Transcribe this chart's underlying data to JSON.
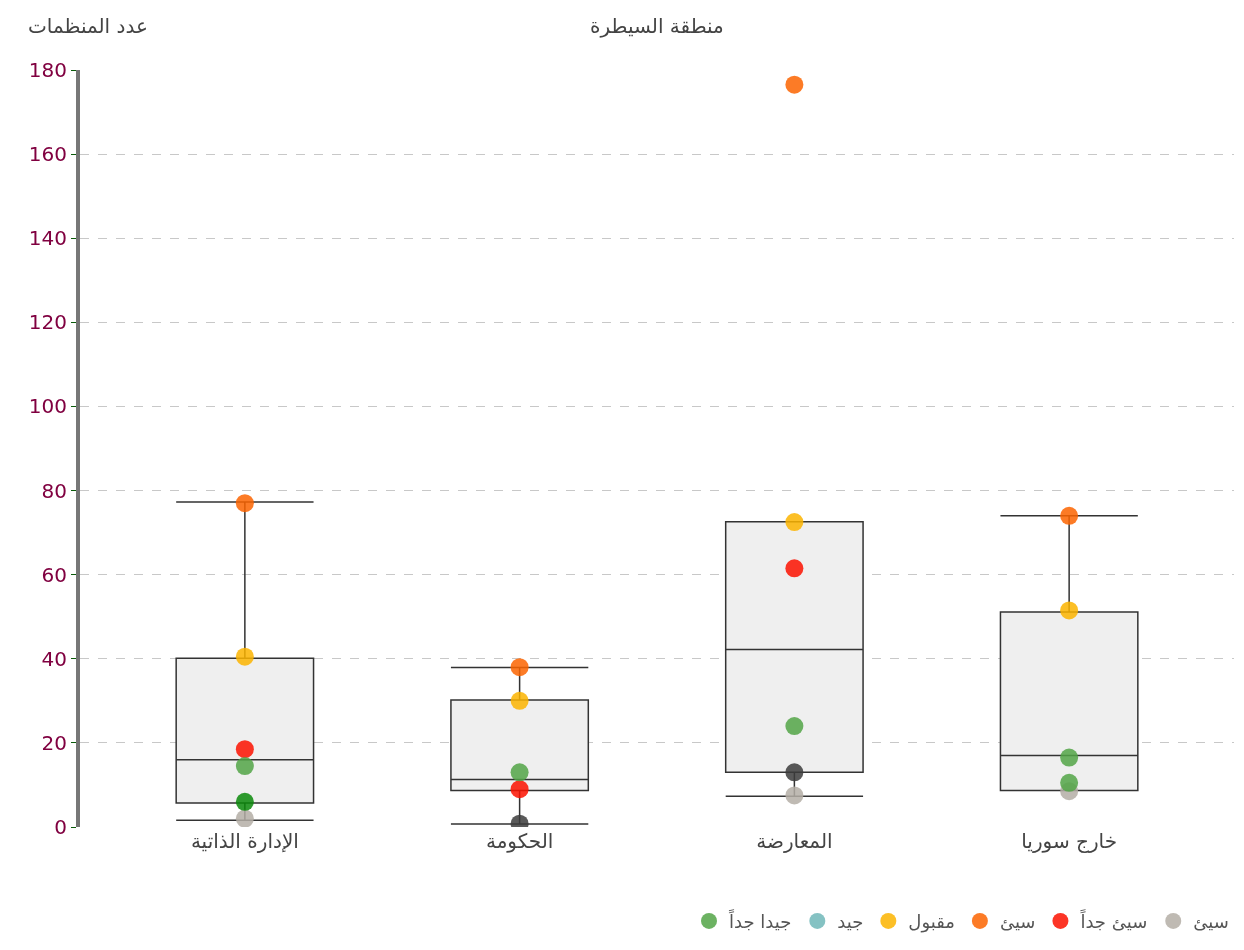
{
  "chart_data": {
    "type": "box",
    "xlabel": "منطقة السيطرة",
    "ylabel": "عدد المنظمات",
    "categories": [
      "الإدارة الذاتية",
      "الحكومة",
      "المعارضة",
      "خارج سوريا"
    ],
    "boxes": [
      {
        "low": 1.6,
        "q1": 5.7,
        "median": 16,
        "q3": 40.1,
        "high": 77.3
      },
      {
        "low": 0.7,
        "q1": 8.7,
        "median": 11.3,
        "q3": 30.2,
        "high": 37.9
      },
      {
        "low": 7.3,
        "q1": 13,
        "median": 42.2,
        "q3": 72.6,
        "high": 72.6
      },
      {
        "low": 8.7,
        "q1": 8.7,
        "median": 17,
        "q3": 51.1,
        "high": 74
      }
    ],
    "series": [
      {
        "type": "scatter",
        "name": "سيئ",
        "color": "#b4aea6",
        "values": [
          2,
          null,
          7.5,
          8.5
        ]
      },
      {
        "type": "scatter",
        "name": "سيئ جداً",
        "color": "#fb1200",
        "values": [
          18.5,
          9,
          61.5,
          null
        ]
      },
      {
        "type": "scatter",
        "name": "سيئ",
        "color": "#fb6400",
        "values": [
          77,
          38,
          176.5,
          74
        ]
      },
      {
        "type": "scatter",
        "name": "مقبول",
        "color": "#fbb400",
        "values": [
          40.5,
          30,
          72.5,
          51.5
        ]
      },
      {
        "type": "scatter",
        "name": "جيد",
        "color": "#70b7b9",
        "values": [
          null,
          null,
          null,
          null
        ]
      },
      {
        "type": "scatter",
        "name": "جيدا جداً",
        "color": "#52a447",
        "values": [
          14.5,
          13,
          24,
          16.5
        ]
      },
      {
        "type": "scatter",
        "colors": [
          "#0a8a0a",
          "#3c3c3c",
          "#3c3c3c",
          "#52a447"
        ],
        "values": [
          6,
          0.8,
          13,
          10.5
        ]
      }
    ],
    "ylim": [
      0,
      180
    ],
    "yticks": [
      0,
      20,
      40,
      60,
      80,
      100,
      120,
      140,
      160,
      180
    ],
    "grid": "y",
    "legend": "bottom",
    "marker": "circle"
  }
}
